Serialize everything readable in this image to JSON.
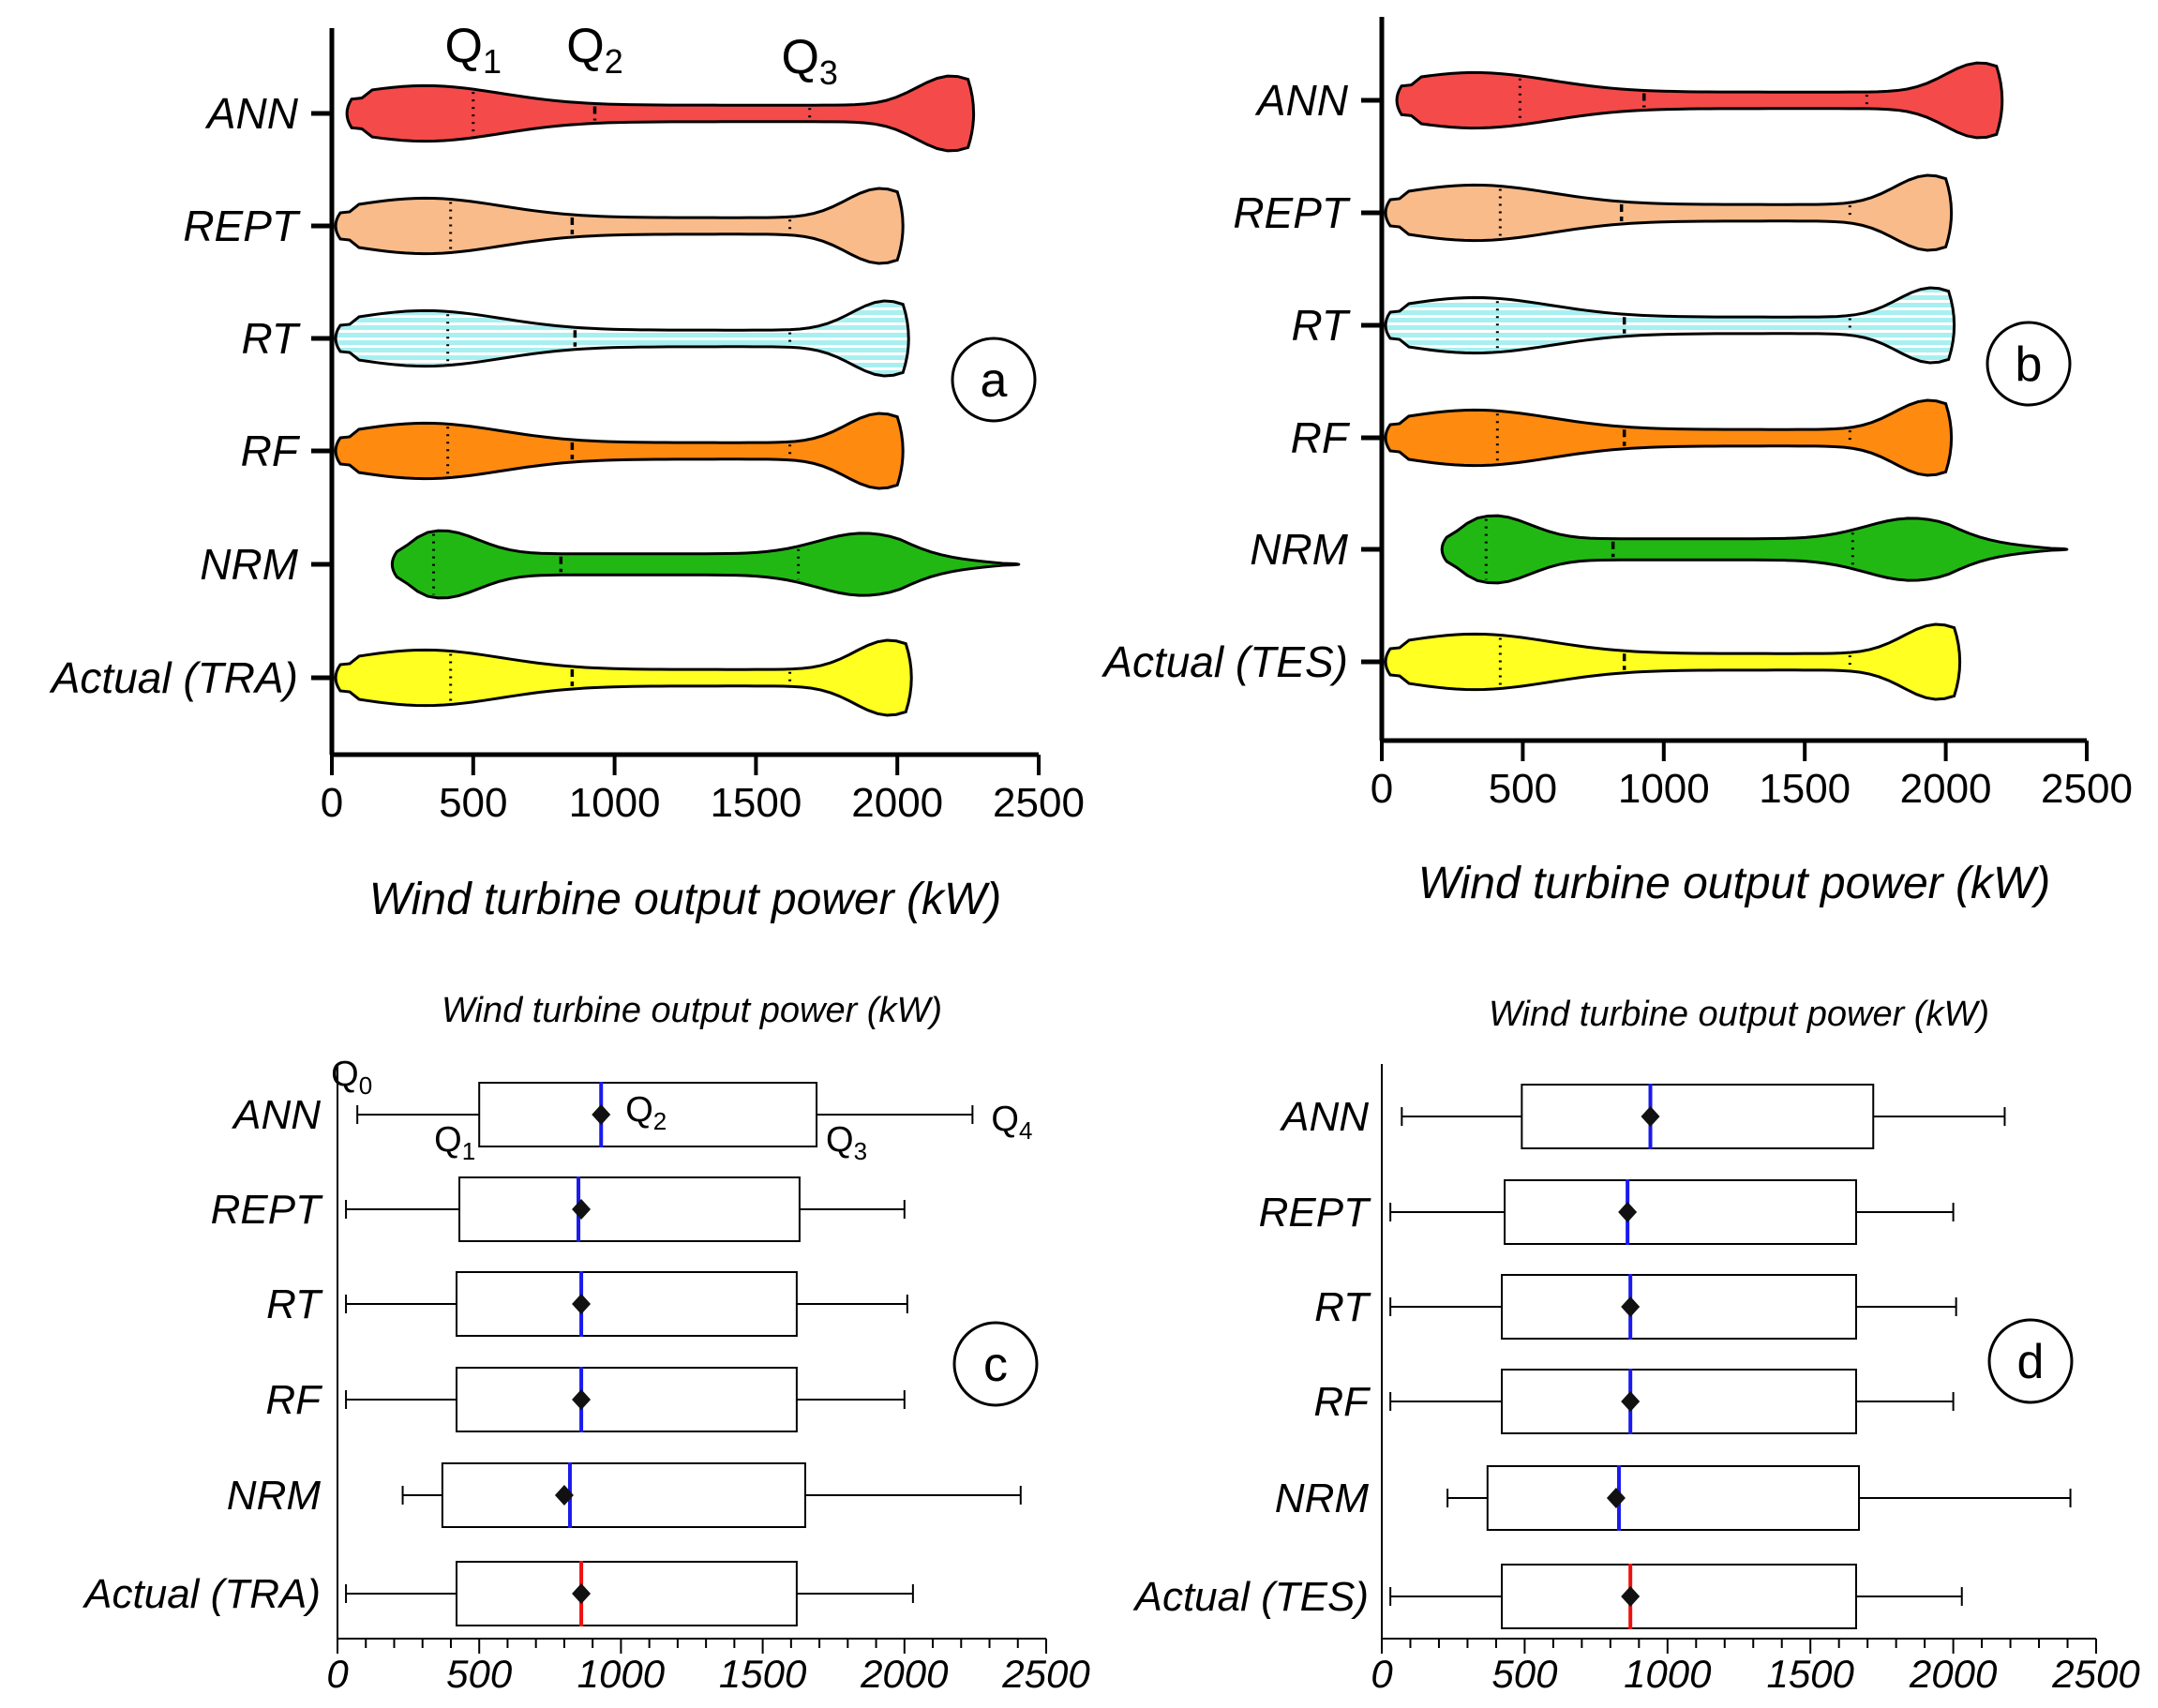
{
  "chart_data": [
    {
      "panel": "a",
      "type": "violin",
      "xlabel": "Wind turbine output power (kW)",
      "xlim": [
        0,
        2500
      ],
      "xticks": [
        "0",
        "500",
        "1000",
        "1500",
        "2000",
        "2500"
      ],
      "quartile_labels": [
        "Q1",
        "Q2",
        "Q3"
      ],
      "categories": [
        "ANN",
        "REPT",
        "RT",
        "RF",
        "NRM",
        "Actual (TRA)"
      ],
      "colors": [
        "#f44a4a",
        "#f9bb8a",
        "#a8f0f0",
        "#ff8a10",
        "#22b814",
        "#ffff22"
      ],
      "min": [
        70,
        30,
        30,
        30,
        230,
        30
      ],
      "max": [
        2250,
        2000,
        2020,
        2000,
        2410,
        2030
      ],
      "q1": [
        500,
        420,
        410,
        410,
        360,
        420
      ],
      "q2": [
        930,
        850,
        860,
        850,
        810,
        850
      ],
      "q3": [
        1690,
        1620,
        1620,
        1620,
        1650,
        1620
      ]
    },
    {
      "panel": "b",
      "type": "violin",
      "xlabel": "Wind turbine output power (kW)",
      "xlim": [
        0,
        2500
      ],
      "xticks": [
        "0",
        "500",
        "1000",
        "1500",
        "2000",
        "2500"
      ],
      "categories": [
        "ANN",
        "REPT",
        "RT",
        "RF",
        "NRM",
        "Actual (TES)"
      ],
      "colors": [
        "#f44a4a",
        "#f9bb8a",
        "#a8f0f0",
        "#ff8a10",
        "#22b814",
        "#ffff22"
      ],
      "min": [
        70,
        30,
        30,
        30,
        230,
        30
      ],
      "max": [
        2180,
        2000,
        2010,
        2000,
        2410,
        2030
      ],
      "q1": [
        490,
        420,
        410,
        410,
        370,
        420
      ],
      "q2": [
        930,
        850,
        860,
        860,
        820,
        860
      ],
      "q3": [
        1720,
        1660,
        1660,
        1660,
        1670,
        1660
      ]
    },
    {
      "panel": "c",
      "type": "box",
      "title": "Wind turbine output power (kW)",
      "xlim": [
        0,
        2500
      ],
      "xticks": [
        "0",
        "500",
        "1000",
        "1500",
        "2000",
        "2500"
      ],
      "quartile_labels": [
        "Q0",
        "Q1",
        "Q2",
        "Q3",
        "Q4"
      ],
      "categories": [
        "ANN",
        "REPT",
        "RT",
        "RF",
        "NRM",
        "Actual (TRA)"
      ],
      "q0": [
        70,
        30,
        30,
        30,
        230,
        30
      ],
      "q1": [
        500,
        430,
        420,
        420,
        370,
        420
      ],
      "median": [
        930,
        850,
        860,
        860,
        820,
        860
      ],
      "mean": [
        930,
        860,
        860,
        860,
        800,
        860
      ],
      "q3": [
        1690,
        1630,
        1620,
        1620,
        1650,
        1620
      ],
      "q4": [
        2240,
        2000,
        2010,
        2000,
        2410,
        2030
      ]
    },
    {
      "panel": "d",
      "type": "box",
      "title": "Wind turbine output power (kW)",
      "xlim": [
        0,
        2500
      ],
      "xticks": [
        "0",
        "500",
        "1000",
        "1500",
        "2000",
        "2500"
      ],
      "categories": [
        "ANN",
        "REPT",
        "RT",
        "RF",
        "NRM",
        "Actual (TES)"
      ],
      "q0": [
        70,
        30,
        30,
        30,
        230,
        30
      ],
      "q1": [
        490,
        430,
        420,
        420,
        370,
        420
      ],
      "median": [
        940,
        860,
        870,
        870,
        830,
        870
      ],
      "mean": [
        940,
        860,
        870,
        870,
        820,
        870
      ],
      "q3": [
        1720,
        1660,
        1660,
        1660,
        1670,
        1660
      ],
      "q4": [
        2180,
        2000,
        2010,
        2000,
        2410,
        2030
      ]
    }
  ]
}
